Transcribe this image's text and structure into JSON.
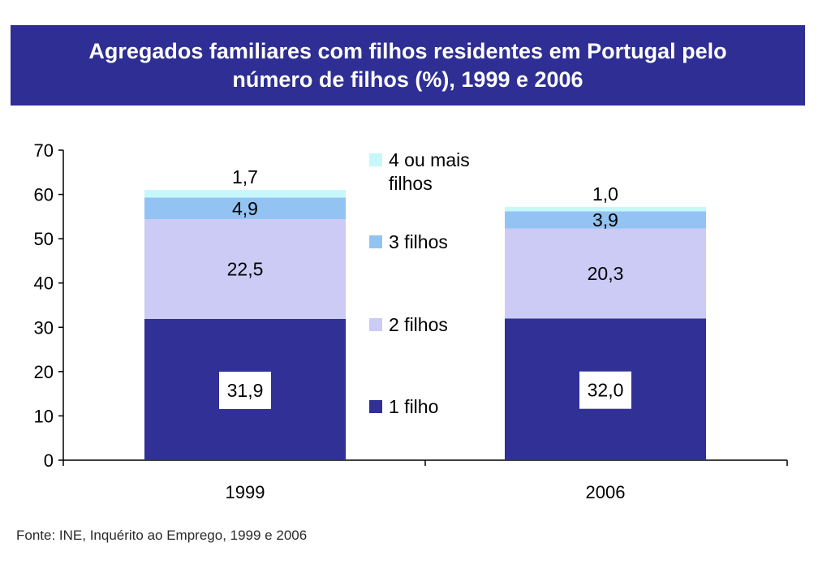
{
  "chart_data": {
    "type": "bar",
    "stacked": true,
    "title_line1": "Agregados familiares com filhos residentes em Portugal pelo",
    "title_line2": "número de filhos (%), 1999 e 2006",
    "categories": [
      "1999",
      "2006"
    ],
    "ylim": [
      0,
      70
    ],
    "yticks": [
      0,
      10,
      20,
      30,
      40,
      50,
      60,
      70
    ],
    "series": [
      {
        "name": "1 filho",
        "values": [
          31.9,
          32.0
        ],
        "labels": [
          "31,9",
          "32,0"
        ],
        "color": "#303096"
      },
      {
        "name": "2 filhos",
        "values": [
          22.5,
          20.3
        ],
        "labels": [
          "22,5",
          "20,3"
        ],
        "color": "#cbcbf5"
      },
      {
        "name": "3 filhos",
        "values": [
          4.9,
          3.9
        ],
        "labels": [
          "4,9",
          "3,9"
        ],
        "color": "#93c3f2"
      },
      {
        "name": "4 ou mais filhos",
        "legend_lines": [
          "4 ou mais",
          "filhos"
        ],
        "values": [
          1.7,
          1.0
        ],
        "labels": [
          "1,7",
          "1,0"
        ],
        "color": "#c6f7fb"
      }
    ],
    "legend_position": "right-between-bars",
    "grid": false
  },
  "source": "Fonte: INE, Inquérito ao Emprego, 1999 e 2006"
}
